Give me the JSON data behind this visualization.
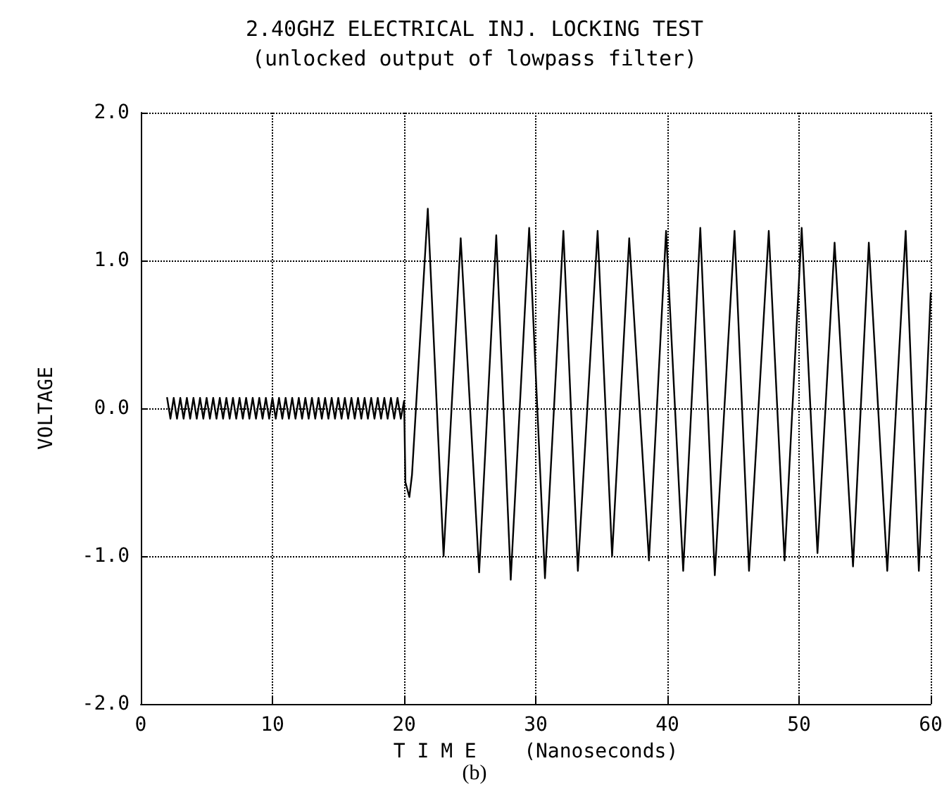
{
  "chart_data": {
    "type": "line",
    "title": "2.40GHZ ELECTRICAL INJ. LOCKING TEST",
    "subtitle": "(unlocked output of lowpass filter)",
    "xlabel": "T I M E    (Nanoseconds)",
    "ylabel": "VOLTAGE",
    "annotations": [
      "(b)"
    ],
    "xlim": [
      0,
      60
    ],
    "xticks": [
      0,
      10,
      20,
      30,
      40,
      50,
      60
    ],
    "ylim": [
      -2,
      2
    ],
    "yticks": [
      {
        "value": -2,
        "label": "-2.0"
      },
      {
        "value": -1,
        "label": "-1.0"
      },
      {
        "value": 0,
        "label": "0.0"
      },
      {
        "value": 1,
        "label": "1.0"
      },
      {
        "value": 2,
        "label": "2.0"
      }
    ],
    "grid": true,
    "marker": "none",
    "line_style": "solid",
    "series": [
      {
        "color": "#000000",
        "x": [
          2.0,
          2.25,
          2.5,
          2.75,
          3.0,
          3.25,
          3.5,
          3.75,
          4.0,
          4.25,
          4.5,
          4.75,
          5.0,
          5.25,
          5.5,
          5.75,
          6.0,
          6.25,
          6.5,
          6.75,
          7.0,
          7.25,
          7.5,
          7.75,
          8.0,
          8.25,
          8.5,
          8.75,
          9.0,
          9.25,
          9.5,
          9.75,
          10.0,
          10.25,
          10.5,
          10.75,
          11.0,
          11.25,
          11.5,
          11.75,
          12.0,
          12.25,
          12.5,
          12.75,
          13.0,
          13.25,
          13.5,
          13.75,
          14.0,
          14.25,
          14.5,
          14.75,
          15.0,
          15.25,
          15.5,
          15.75,
          16.0,
          16.25,
          16.5,
          16.75,
          17.0,
          17.25,
          17.5,
          17.75,
          18.0,
          18.25,
          18.5,
          18.75,
          19.0,
          19.25,
          19.5,
          19.75,
          20.0,
          20.1,
          20.4,
          20.6,
          21.8,
          23.0,
          24.3,
          25.7,
          27.0,
          28.1,
          29.5,
          30.7,
          32.1,
          33.2,
          34.7,
          35.8,
          37.1,
          38.6,
          39.9,
          41.2,
          42.5,
          43.6,
          45.1,
          46.2,
          47.7,
          48.9,
          50.2,
          51.4,
          52.7,
          54.1,
          55.3,
          56.7,
          58.1,
          59.1,
          60.0
        ],
        "values": [
          0.07,
          -0.07,
          0.07,
          -0.07,
          0.07,
          -0.07,
          0.07,
          -0.07,
          0.07,
          -0.07,
          0.07,
          -0.07,
          0.07,
          -0.07,
          0.07,
          -0.07,
          0.07,
          -0.07,
          0.07,
          -0.07,
          0.07,
          -0.07,
          0.07,
          -0.07,
          0.07,
          -0.07,
          0.07,
          -0.07,
          0.07,
          -0.07,
          0.07,
          -0.07,
          0.07,
          -0.07,
          0.07,
          -0.07,
          0.07,
          -0.07,
          0.07,
          -0.07,
          0.07,
          -0.07,
          0.07,
          -0.07,
          0.07,
          -0.07,
          0.07,
          -0.07,
          0.07,
          -0.07,
          0.07,
          -0.07,
          0.07,
          -0.07,
          0.07,
          -0.07,
          0.07,
          -0.07,
          0.07,
          -0.07,
          0.07,
          -0.07,
          0.07,
          -0.07,
          0.07,
          -0.07,
          0.07,
          -0.07,
          0.07,
          -0.07,
          0.07,
          -0.07,
          0.05,
          -0.5,
          -0.6,
          -0.45,
          1.35,
          -1.0,
          1.15,
          -1.11,
          1.17,
          -1.16,
          1.22,
          -1.15,
          1.2,
          -1.1,
          1.2,
          -1.0,
          1.15,
          -1.03,
          1.2,
          -1.1,
          1.22,
          -1.13,
          1.2,
          -1.1,
          1.2,
          -1.03,
          1.22,
          -0.98,
          1.12,
          -1.07,
          1.12,
          -1.1,
          1.2,
          -1.1,
          0.78
        ]
      }
    ]
  }
}
